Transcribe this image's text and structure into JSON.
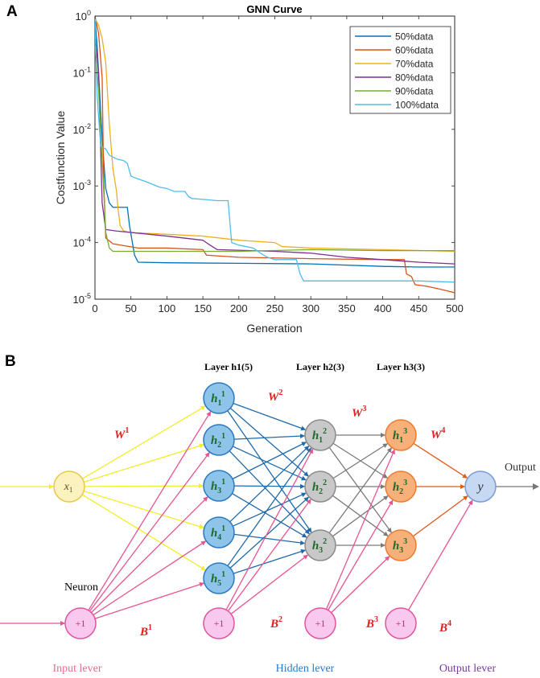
{
  "panel_a": {
    "letter": "A"
  },
  "panel_b": {
    "letter": "B"
  },
  "chart_data": {
    "type": "line",
    "title": "GNN Curve",
    "xlabel": "Generation",
    "ylabel": "Costfunction Value",
    "xlim": [
      0,
      500
    ],
    "ylim": [
      1e-05,
      1
    ],
    "yscale": "log",
    "xticks": [
      0,
      50,
      100,
      150,
      200,
      250,
      300,
      350,
      400,
      450,
      500
    ],
    "yticks": [
      {
        "value": 1,
        "base": "10",
        "exp": "0"
      },
      {
        "value": 0.1,
        "base": "10",
        "exp": "-1"
      },
      {
        "value": 0.01,
        "base": "10",
        "exp": "-2"
      },
      {
        "value": 0.001,
        "base": "10",
        "exp": "-3"
      },
      {
        "value": 0.0001,
        "base": "10",
        "exp": "-4"
      },
      {
        "value": 1e-05,
        "base": "10",
        "exp": "-5"
      }
    ],
    "legend_position": "top-right",
    "series": [
      {
        "name": "50%data",
        "color": "#0072BD",
        "points": [
          [
            0,
            1
          ],
          [
            3,
            0.3
          ],
          [
            8,
            0.02
          ],
          [
            12,
            0.003
          ],
          [
            15,
            0.0009
          ],
          [
            20,
            0.0005
          ],
          [
            25,
            0.00042
          ],
          [
            45,
            0.00042
          ],
          [
            48,
            0.0002
          ],
          [
            52,
            0.0001
          ],
          [
            55,
            6e-05
          ],
          [
            60,
            4.5e-05
          ],
          [
            100,
            4.4e-05
          ],
          [
            200,
            4.3e-05
          ],
          [
            300,
            4.2e-05
          ],
          [
            400,
            3.8e-05
          ],
          [
            450,
            3.7e-05
          ],
          [
            500,
            3.7e-05
          ]
        ]
      },
      {
        "name": "60%data",
        "color": "#D95319",
        "points": [
          [
            0,
            1
          ],
          [
            5,
            0.5
          ],
          [
            10,
            0.08
          ],
          [
            12,
            0.0015
          ],
          [
            15,
            0.00012
          ],
          [
            25,
            9.5e-05
          ],
          [
            60,
            8e-05
          ],
          [
            100,
            8e-05
          ],
          [
            150,
            7.5e-05
          ],
          [
            155,
            6e-05
          ],
          [
            200,
            5.5e-05
          ],
          [
            300,
            5.2e-05
          ],
          [
            400,
            5e-05
          ],
          [
            430,
            5e-05
          ],
          [
            433,
            2.8e-05
          ],
          [
            440,
            2.5e-05
          ],
          [
            445,
            1.8e-05
          ],
          [
            460,
            1.7e-05
          ],
          [
            470,
            1.6e-05
          ],
          [
            480,
            1.5e-05
          ],
          [
            490,
            1.4e-05
          ],
          [
            500,
            1.3e-05
          ]
        ]
      },
      {
        "name": "70%data",
        "color": "#EDB120",
        "points": [
          [
            0,
            0.9
          ],
          [
            5,
            0.7
          ],
          [
            10,
            0.4
          ],
          [
            15,
            0.15
          ],
          [
            20,
            0.012
          ],
          [
            25,
            0.002
          ],
          [
            30,
            0.0008
          ],
          [
            32,
            0.0004
          ],
          [
            35,
            0.0002
          ],
          [
            40,
            0.00016
          ],
          [
            50,
            0.00015
          ],
          [
            100,
            0.00014
          ],
          [
            150,
            0.00013
          ],
          [
            200,
            0.00011
          ],
          [
            250,
            0.0001
          ],
          [
            260,
            8.5e-05
          ],
          [
            300,
            8e-05
          ],
          [
            400,
            7.5e-05
          ],
          [
            500,
            7e-05
          ]
        ]
      },
      {
        "name": "80%data",
        "color": "#7E2F8E",
        "points": [
          [
            0,
            0.5
          ],
          [
            5,
            0.1
          ],
          [
            10,
            0.0005
          ],
          [
            15,
            0.00017
          ],
          [
            30,
            0.00016
          ],
          [
            100,
            0.00013
          ],
          [
            150,
            0.00011
          ],
          [
            160,
            9e-05
          ],
          [
            170,
            7.5e-05
          ],
          [
            250,
            7e-05
          ],
          [
            300,
            6.5e-05
          ],
          [
            350,
            5.5e-05
          ],
          [
            400,
            5e-05
          ],
          [
            450,
            4.5e-05
          ],
          [
            500,
            4.2e-05
          ]
        ]
      },
      {
        "name": "90%data",
        "color": "#77AC30",
        "points": [
          [
            0,
            0.3
          ],
          [
            5,
            0.05
          ],
          [
            10,
            0.003
          ],
          [
            15,
            0.00015
          ],
          [
            20,
            8e-05
          ],
          [
            25,
            7e-05
          ],
          [
            150,
            7e-05
          ],
          [
            200,
            7e-05
          ],
          [
            300,
            7.5e-05
          ],
          [
            400,
            7.2e-05
          ],
          [
            500,
            7.2e-05
          ]
        ]
      },
      {
        "name": "100%data",
        "color": "#4DBEEE",
        "points": [
          [
            0,
            0.9
          ],
          [
            3,
            0.04
          ],
          [
            8,
            0.005
          ],
          [
            15,
            0.0045
          ],
          [
            20,
            0.0035
          ],
          [
            30,
            0.003
          ],
          [
            40,
            0.0028
          ],
          [
            45,
            0.0025
          ],
          [
            50,
            0.0015
          ],
          [
            55,
            0.0014
          ],
          [
            70,
            0.0012
          ],
          [
            90,
            0.00095
          ],
          [
            100,
            0.0009
          ],
          [
            110,
            0.0008
          ],
          [
            125,
            0.0008
          ],
          [
            130,
            0.00065
          ],
          [
            135,
            0.0006
          ],
          [
            150,
            0.00058
          ],
          [
            170,
            0.00055
          ],
          [
            185,
            0.00055
          ],
          [
            190,
            0.0001
          ],
          [
            200,
            9e-05
          ],
          [
            220,
            8e-05
          ],
          [
            230,
            6.5e-05
          ],
          [
            240,
            5.5e-05
          ],
          [
            250,
            5e-05
          ],
          [
            280,
            5e-05
          ],
          [
            285,
            2.8e-05
          ],
          [
            290,
            2.1e-05
          ],
          [
            350,
            2.1e-05
          ],
          [
            450,
            2.1e-05
          ],
          [
            500,
            2e-05
          ]
        ]
      }
    ]
  },
  "network": {
    "layer_titles": [
      "Layer h1(5)",
      "Layer h2(3)",
      "Layer h3(3)"
    ],
    "input_node": {
      "base": "x",
      "sub": "1"
    },
    "hidden1": [
      {
        "base": "h",
        "sub": "1",
        "sup": "1"
      },
      {
        "base": "h",
        "sub": "2",
        "sup": "1"
      },
      {
        "base": "h",
        "sub": "3",
        "sup": "1"
      },
      {
        "base": "h",
        "sub": "4",
        "sup": "1"
      },
      {
        "base": "h",
        "sub": "5",
        "sup": "1"
      }
    ],
    "hidden2": [
      {
        "base": "h",
        "sub": "1",
        "sup": "2"
      },
      {
        "base": "h",
        "sub": "2",
        "sup": "2"
      },
      {
        "base": "h",
        "sub": "3",
        "sup": "2"
      }
    ],
    "hidden3": [
      {
        "base": "h",
        "sub": "1",
        "sup": "3"
      },
      {
        "base": "h",
        "sub": "2",
        "sup": "3"
      },
      {
        "base": "h",
        "sub": "3",
        "sup": "3"
      }
    ],
    "output_node": "y",
    "output_label": "Output",
    "bias_label": "+1",
    "weights": [
      {
        "base": "W",
        "sup": "1"
      },
      {
        "base": "W",
        "sup": "2"
      },
      {
        "base": "W",
        "sup": "3"
      },
      {
        "base": "W",
        "sup": "4"
      }
    ],
    "biases": [
      {
        "base": "B",
        "sup": "1"
      },
      {
        "base": "B",
        "sup": "2"
      },
      {
        "base": "B",
        "sup": "3"
      },
      {
        "base": "B",
        "sup": "4"
      }
    ],
    "neuron_label": "Neuron",
    "input_lever": "Input lever",
    "hidden_lever": "Hidden lever",
    "output_lever": "Output lever",
    "colors": {
      "input_edge": "#f2ee28",
      "input_fill": "#fbf2c0",
      "input_stroke": "#e6c84a",
      "bias_fill": "#f9c8ef",
      "bias_stroke": "#e0559c",
      "bias_edge": "#e8548f",
      "h1_fill": "#8ec3ea",
      "h1_stroke": "#2b7ac0",
      "h1_edge": "#1f6aaa",
      "h2_fill": "#c8c8c8",
      "h2_stroke": "#8a8a8a",
      "h2_edge": "#7a7a7a",
      "h3_fill": "#f7b07a",
      "h3_stroke": "#ec7c30",
      "h3_edge": "#e05a18",
      "out_fill": "#c6d8f2",
      "out_stroke": "#7b9ad6",
      "out_edge": "#777777",
      "weight_text": "#e0201e",
      "node_text": "#1e6a2a",
      "input_lever_text": "#f06a8a",
      "hidden_lever_text": "#2878c8",
      "output_lever_text": "#7a3aa0"
    }
  }
}
